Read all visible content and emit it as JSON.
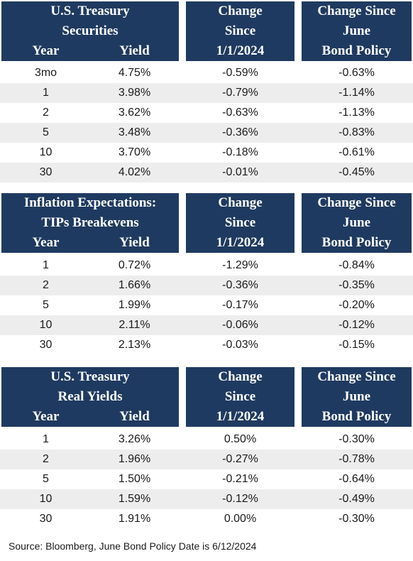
{
  "sections": [
    {
      "header": {
        "title_line1": "U.S. Treasury",
        "title_line2": "Securities",
        "year_label": "Year",
        "yield_label": "Yield",
        "change1_lines": [
          "Change",
          "Since",
          "1/1/2024"
        ],
        "change2_lines": [
          "Change Since",
          "June",
          "Bond Policy"
        ]
      },
      "rows": [
        {
          "year": "3mo",
          "yield": "4.75%",
          "change_ytd": "-0.59%",
          "change_june": "-0.63%"
        },
        {
          "year": "1",
          "yield": "3.98%",
          "change_ytd": "-0.79%",
          "change_june": "-1.14%"
        },
        {
          "year": "2",
          "yield": "3.62%",
          "change_ytd": "-0.63%",
          "change_june": "-1.13%"
        },
        {
          "year": "5",
          "yield": "3.48%",
          "change_ytd": "-0.36%",
          "change_june": "-0.83%"
        },
        {
          "year": "10",
          "yield": "3.70%",
          "change_ytd": "-0.18%",
          "change_june": "-0.61%"
        },
        {
          "year": "30",
          "yield": "4.02%",
          "change_ytd": "-0.01%",
          "change_june": "-0.45%"
        }
      ]
    },
    {
      "header": {
        "title_line1": "Inflation Expectations:",
        "title_line2": "TIPs Breakevens",
        "year_label": "Year",
        "yield_label": "Yield",
        "change1_lines": [
          "Change",
          "Since",
          "1/1/2024"
        ],
        "change2_lines": [
          "Change Since",
          "June",
          "Bond Policy"
        ]
      },
      "rows": [
        {
          "year": "1",
          "yield": "0.72%",
          "change_ytd": "-1.29%",
          "change_june": "-0.84%"
        },
        {
          "year": "2",
          "yield": "1.66%",
          "change_ytd": "-0.36%",
          "change_june": "-0.35%"
        },
        {
          "year": "5",
          "yield": "1.99%",
          "change_ytd": "-0.17%",
          "change_june": "-0.20%"
        },
        {
          "year": "10",
          "yield": "2.11%",
          "change_ytd": "-0.06%",
          "change_june": "-0.12%"
        },
        {
          "year": "30",
          "yield": "2.13%",
          "change_ytd": "-0.03%",
          "change_june": "-0.15%"
        }
      ]
    },
    {
      "header": {
        "title_line1": "U.S. Treasury",
        "title_line2": "Real Yields",
        "year_label": "Year",
        "yield_label": "Yield",
        "change1_lines": [
          "Change",
          "Since",
          "1/1/2024"
        ],
        "change2_lines": [
          "Change Since",
          "June",
          "Bond Policy"
        ]
      },
      "rows": [
        {
          "year": "1",
          "yield": "3.26%",
          "change_ytd": "0.50%",
          "change_june": "-0.30%"
        },
        {
          "year": "2",
          "yield": "1.96%",
          "change_ytd": "-0.27%",
          "change_june": "-0.78%"
        },
        {
          "year": "5",
          "yield": "1.50%",
          "change_ytd": "-0.21%",
          "change_june": "-0.64%"
        },
        {
          "year": "10",
          "yield": "1.59%",
          "change_ytd": "-0.12%",
          "change_june": "-0.49%"
        },
        {
          "year": "30",
          "yield": "1.91%",
          "change_ytd": "0.00%",
          "change_june": "-0.30%"
        }
      ]
    }
  ],
  "source": "Source: Bloomberg, June Bond Policy Date is 6/12/2024",
  "colors": {
    "header_bg": "#1f3a60",
    "header_text": "#ffffff",
    "row_shade": "#ededed"
  }
}
